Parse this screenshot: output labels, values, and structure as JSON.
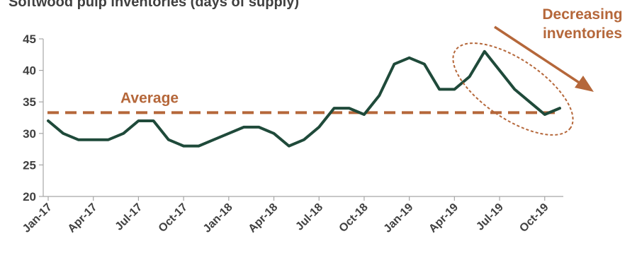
{
  "chart_data": {
    "type": "line",
    "title": "Softwood pulp inventories (days of supply)",
    "xlabel": "",
    "ylabel": "",
    "ylim": [
      20,
      45
    ],
    "yticks": [
      20,
      25,
      30,
      35,
      40,
      45
    ],
    "grid": false,
    "x": [
      "Jan-17",
      "Feb-17",
      "Mar-17",
      "Apr-17",
      "May-17",
      "Jun-17",
      "Jul-17",
      "Aug-17",
      "Sep-17",
      "Oct-17",
      "Nov-17",
      "Dec-17",
      "Jan-18",
      "Feb-18",
      "Mar-18",
      "Apr-18",
      "May-18",
      "Jun-18",
      "Jul-18",
      "Aug-18",
      "Sep-18",
      "Oct-18",
      "Nov-18",
      "Dec-18",
      "Jan-19",
      "Feb-19",
      "Mar-19",
      "Apr-19",
      "May-19",
      "Jun-19",
      "Jul-19",
      "Aug-19",
      "Sep-19",
      "Oct-19",
      "Nov-19"
    ],
    "xtick_labels": [
      "Jan-17",
      "Apr-17",
      "Jul-17",
      "Oct-17",
      "Jan-18",
      "Apr-18",
      "Jul-18",
      "Oct-18",
      "Jan-19",
      "Apr-19",
      "Jul-19",
      "Oct-19"
    ],
    "series": [
      {
        "values": [
          32,
          30,
          29,
          29,
          29,
          30,
          32,
          32,
          29,
          28,
          28,
          29,
          30,
          31,
          31,
          30,
          28,
          29,
          31,
          34,
          34,
          33,
          36,
          41,
          42,
          41,
          37,
          37,
          39,
          43,
          40,
          37,
          35,
          33,
          34
        ],
        "color": "#1f4a3a"
      }
    ],
    "average": {
      "value": 33.3,
      "label": "Average",
      "color": "#b5673a"
    },
    "annotation": {
      "lines": [
        "Decreasing",
        "inventories"
      ],
      "color": "#b5673a"
    }
  }
}
